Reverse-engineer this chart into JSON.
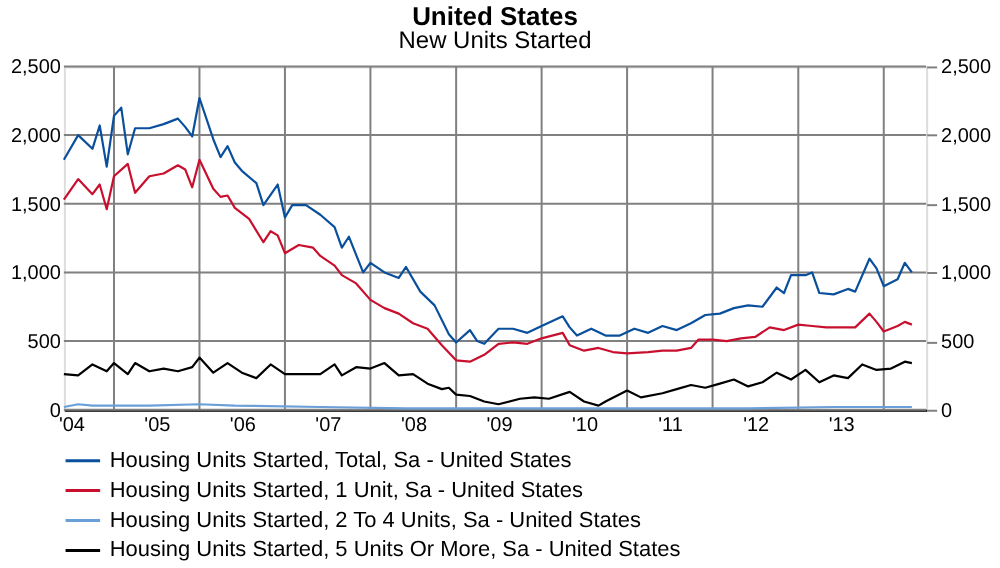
{
  "chart_data": {
    "type": "line",
    "title": "United States",
    "subtitle": "New Units Started",
    "xlim": [
      "2004-06",
      "2014-07"
    ],
    "xticks": [
      {
        "value": "2004-07",
        "label": "'04"
      },
      {
        "value": "2005-07",
        "label": "'05"
      },
      {
        "value": "2006-07",
        "label": "'06"
      },
      {
        "value": "2007-07",
        "label": "'07"
      },
      {
        "value": "2008-07",
        "label": "'08"
      },
      {
        "value": "2009-07",
        "label": "'09"
      },
      {
        "value": "2010-07",
        "label": "'10"
      },
      {
        "value": "2011-07",
        "label": "'11"
      },
      {
        "value": "2012-07",
        "label": "'12"
      },
      {
        "value": "2013-07",
        "label": "'13"
      },
      {
        "value": "2005-01",
        "label": null
      },
      {
        "value": "2006-01",
        "label": null
      },
      {
        "value": "2007-01",
        "label": null
      },
      {
        "value": "2008-01",
        "label": null
      },
      {
        "value": "2009-01",
        "label": null
      },
      {
        "value": "2010-01",
        "label": null
      },
      {
        "value": "2011-01",
        "label": null
      },
      {
        "value": "2012-01",
        "label": null
      },
      {
        "value": "2013-01",
        "label": null
      },
      {
        "value": "2014-01",
        "label": null
      }
    ],
    "ylim": [
      0,
      2500
    ],
    "yticks": [
      0,
      500,
      {
        "value": 1000,
        "label": "1,000"
      },
      {
        "value": 1500,
        "label": "1,500"
      },
      {
        "value": 2000,
        "label": "2,000"
      },
      {
        "value": 2500,
        "label": "2,500"
      }
    ],
    "y2lim": [
      0,
      2500
    ],
    "y2ticks": [
      0,
      500,
      {
        "value": 1000,
        "label": "1,000"
      },
      {
        "value": 1500,
        "label": "1,500"
      },
      {
        "value": 2000,
        "label": "2,000"
      },
      {
        "value": 2500,
        "label": "2,500"
      }
    ],
    "grid": true,
    "legend": "bottom",
    "marker": "none",
    "line_style": "solid",
    "series": [
      {
        "name": "Housing Units Started, Total, Sa - United States",
        "color": "#0a4f9c",
        "x": [
          "2004-06",
          "2004-08",
          "2004-10",
          "2004-11",
          "2004-12",
          "2005-01",
          "2005-02",
          "2005-03",
          "2005-04",
          "2005-06",
          "2005-08",
          "2005-10",
          "2005-11",
          "2005-12",
          "2006-01",
          "2006-03",
          "2006-04",
          "2006-05",
          "2006-06",
          "2006-07",
          "2006-09",
          "2006-10",
          "2006-12",
          "2007-01",
          "2007-02",
          "2007-04",
          "2007-06",
          "2007-08",
          "2007-09",
          "2007-10",
          "2007-12",
          "2008-01",
          "2008-03",
          "2008-05",
          "2008-06",
          "2008-08",
          "2008-10",
          "2008-12",
          "2009-01",
          "2009-03",
          "2009-04",
          "2009-05",
          "2009-07",
          "2009-09",
          "2009-11",
          "2010-01",
          "2010-04",
          "2010-05",
          "2010-06",
          "2010-08",
          "2010-10",
          "2010-12",
          "2011-02",
          "2011-04",
          "2011-06",
          "2011-08",
          "2011-10",
          "2011-12",
          "2012-02",
          "2012-04",
          "2012-06",
          "2012-08",
          "2012-10",
          "2012-11",
          "2012-12",
          "2013-02",
          "2013-03",
          "2013-04",
          "2013-06",
          "2013-08",
          "2013-09",
          "2013-11",
          "2013-12",
          "2014-01",
          "2014-03",
          "2014-04",
          "2014-05"
        ],
        "values": [
          1820,
          2000,
          1900,
          2070,
          1770,
          2140,
          2200,
          1860,
          2050,
          2050,
          2080,
          2120,
          2060,
          1990,
          2270,
          1970,
          1840,
          1920,
          1800,
          1740,
          1650,
          1490,
          1640,
          1400,
          1490,
          1490,
          1420,
          1330,
          1180,
          1260,
          1000,
          1070,
          1000,
          960,
          1040,
          860,
          760,
          550,
          490,
          580,
          500,
          480,
          590,
          590,
          560,
          610,
          680,
          600,
          540,
          590,
          540,
          540,
          590,
          560,
          610,
          580,
          630,
          690,
          700,
          740,
          760,
          750,
          890,
          850,
          980,
          980,
          1000,
          850,
          840,
          880,
          860,
          1100,
          1030,
          900,
          950,
          1070,
          1000
        ]
      },
      {
        "name": "Housing Units Started, 1 Unit, Sa - United States",
        "color": "#c8102e",
        "x": [
          "2004-06",
          "2004-08",
          "2004-10",
          "2004-11",
          "2004-12",
          "2005-01",
          "2005-03",
          "2005-04",
          "2005-06",
          "2005-08",
          "2005-10",
          "2005-11",
          "2005-12",
          "2006-01",
          "2006-03",
          "2006-04",
          "2006-05",
          "2006-06",
          "2006-08",
          "2006-10",
          "2006-11",
          "2006-12",
          "2007-01",
          "2007-03",
          "2007-05",
          "2007-06",
          "2007-08",
          "2007-09",
          "2007-11",
          "2008-01",
          "2008-03",
          "2008-05",
          "2008-07",
          "2008-09",
          "2008-11",
          "2009-01",
          "2009-03",
          "2009-05",
          "2009-07",
          "2009-09",
          "2009-11",
          "2010-01",
          "2010-04",
          "2010-05",
          "2010-07",
          "2010-09",
          "2010-11",
          "2011-01",
          "2011-04",
          "2011-06",
          "2011-08",
          "2011-10",
          "2011-11",
          "2012-01",
          "2012-03",
          "2012-05",
          "2012-07",
          "2012-09",
          "2012-11",
          "2013-01",
          "2013-03",
          "2013-05",
          "2013-07",
          "2013-09",
          "2013-11",
          "2013-12",
          "2014-01",
          "2014-03",
          "2014-04",
          "2014-05"
        ],
        "values": [
          1530,
          1680,
          1570,
          1640,
          1460,
          1700,
          1790,
          1580,
          1700,
          1720,
          1780,
          1750,
          1620,
          1820,
          1610,
          1550,
          1560,
          1470,
          1390,
          1220,
          1300,
          1270,
          1140,
          1200,
          1180,
          1120,
          1050,
          980,
          920,
          800,
          740,
          700,
          630,
          590,
          470,
          360,
          350,
          400,
          480,
          490,
          480,
          520,
          560,
          470,
          430,
          450,
          420,
          410,
          420,
          430,
          430,
          450,
          510,
          510,
          500,
          520,
          530,
          600,
          580,
          620,
          610,
          600,
          600,
          600,
          700,
          640,
          570,
          610,
          640,
          620
        ]
      },
      {
        "name": "Housing Units Started, 2 To 4 Units, Sa - United States",
        "color": "#6a9fd8",
        "x": [
          "2004-06",
          "2004-08",
          "2004-10",
          "2005-06",
          "2006-01",
          "2006-06",
          "2007-06",
          "2008-06",
          "2009-06",
          "2010-06",
          "2011-06",
          "2012-06",
          "2013-06",
          "2014-05"
        ],
        "values": [
          20,
          40,
          30,
          30,
          40,
          30,
          20,
          10,
          10,
          10,
          10,
          10,
          20,
          20
        ]
      },
      {
        "name": "Housing Units Started, 5 Units Or More, Sa - United States",
        "color": "#000000",
        "x": [
          "2004-06",
          "2004-08",
          "2004-10",
          "2004-12",
          "2005-01",
          "2005-03",
          "2005-04",
          "2005-06",
          "2005-08",
          "2005-10",
          "2005-12",
          "2006-01",
          "2006-03",
          "2006-05",
          "2006-07",
          "2006-09",
          "2006-11",
          "2007-01",
          "2007-06",
          "2007-08",
          "2007-09",
          "2007-11",
          "2008-01",
          "2008-03",
          "2008-05",
          "2008-07",
          "2008-09",
          "2008-11",
          "2008-12",
          "2009-01",
          "2009-03",
          "2009-05",
          "2009-07",
          "2009-10",
          "2009-12",
          "2010-02",
          "2010-05",
          "2010-07",
          "2010-09",
          "2010-10",
          "2011-01",
          "2011-03",
          "2011-06",
          "2011-08",
          "2011-10",
          "2011-12",
          "2012-02",
          "2012-04",
          "2012-06",
          "2012-08",
          "2012-10",
          "2012-12",
          "2013-02",
          "2013-04",
          "2013-06",
          "2013-08",
          "2013-10",
          "2013-12",
          "2014-02",
          "2014-04",
          "2014-05"
        ],
        "values": [
          260,
          250,
          330,
          280,
          340,
          260,
          340,
          280,
          300,
          280,
          310,
          380,
          270,
          340,
          270,
          230,
          330,
          260,
          260,
          330,
          250,
          310,
          300,
          340,
          250,
          260,
          190,
          150,
          160,
          110,
          100,
          60,
          40,
          80,
          90,
          80,
          130,
          60,
          30,
          60,
          140,
          90,
          120,
          150,
          180,
          160,
          190,
          220,
          170,
          200,
          270,
          220,
          290,
          200,
          250,
          230,
          330,
          290,
          300,
          350,
          340
        ]
      }
    ]
  }
}
